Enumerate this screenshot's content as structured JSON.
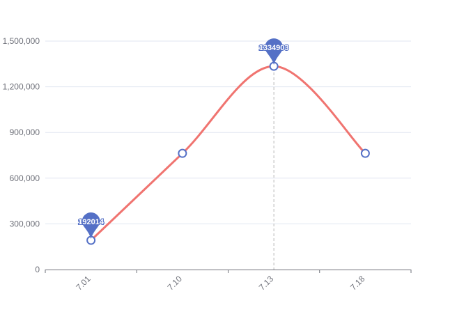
{
  "chart_data": {
    "type": "line",
    "categories": [
      "7.01",
      "7.10",
      "7.13",
      "7.18"
    ],
    "series": [
      {
        "values": [
          192014,
          763000,
          1334903,
          763000
        ]
      }
    ],
    "ylim": [
      0,
      1500000
    ],
    "yticks": [
      0,
      300000,
      600000,
      900000,
      1200000,
      1500000
    ],
    "ytick_labels": [
      "0",
      "300,000",
      "600,000",
      "900,000",
      "1,200,000",
      "1,500,000"
    ],
    "smooth": true,
    "grid": true,
    "marked_points": [
      {
        "category": "7.01",
        "value": 192014,
        "label": "192014"
      },
      {
        "category": "7.13",
        "value": 1334903,
        "label": "1334903"
      }
    ],
    "highlighted_category": "7.13",
    "colors": {
      "line": "#f07470",
      "marker": "#5470c6",
      "grid": "#e0e6f1",
      "axis": "#6e7079"
    }
  }
}
